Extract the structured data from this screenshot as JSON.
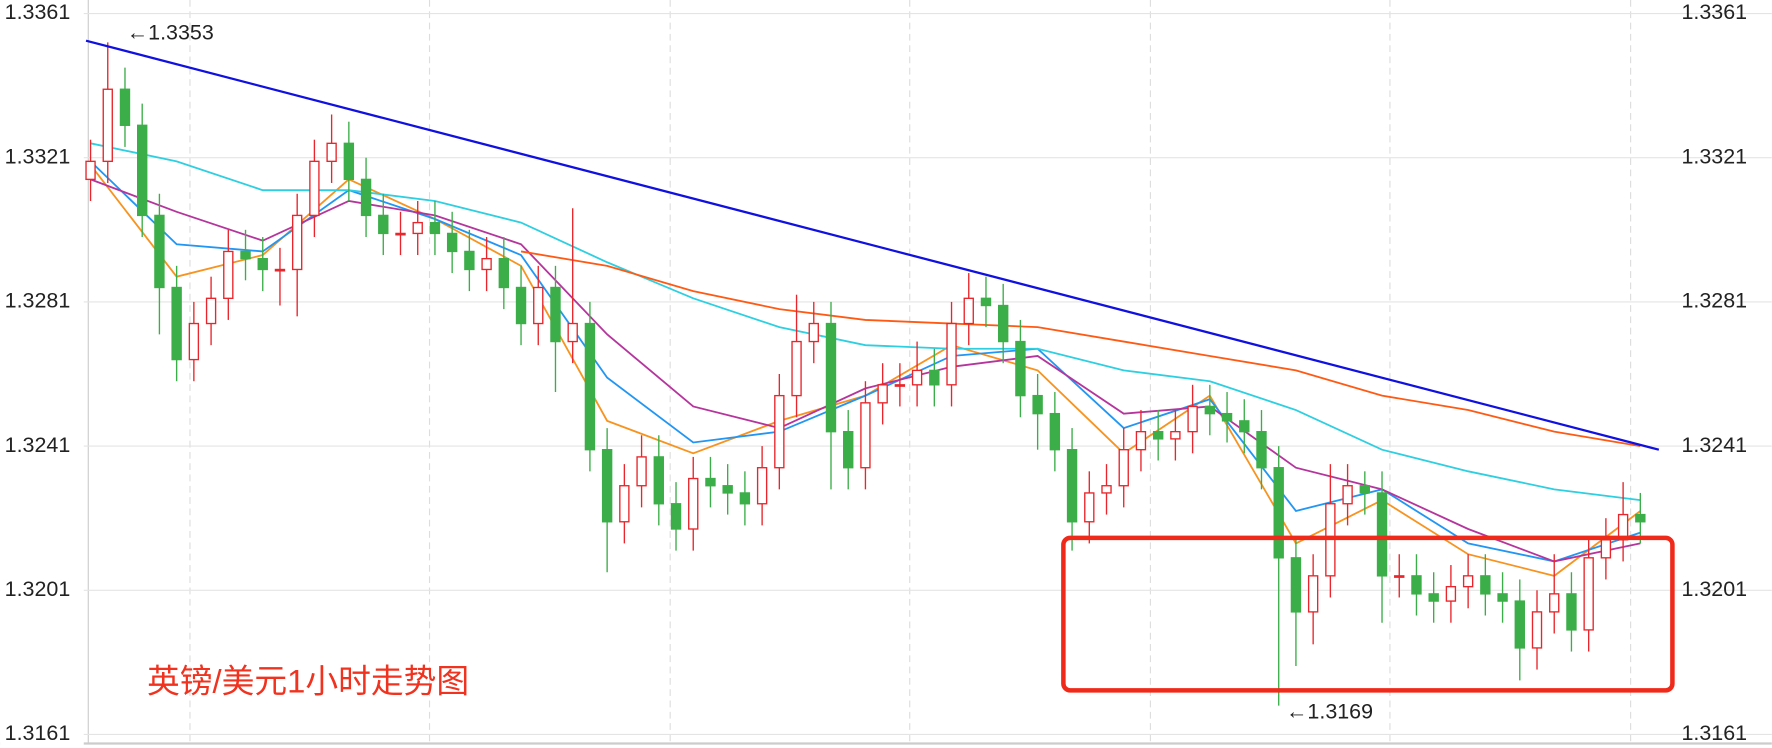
{
  "chart_data": {
    "type": "candlestick",
    "title": "英镑/美元1小时走势图",
    "annotations": [
      {
        "text": "←1.3353"
      },
      {
        "text": "←1.3169"
      }
    ],
    "open": [
      1.3315,
      1.332,
      1.334,
      1.333,
      1.3305,
      1.3285,
      1.3265,
      1.3275,
      1.3282,
      1.3295,
      1.3293,
      1.329,
      1.329,
      1.3305,
      1.332,
      1.3325,
      1.3315,
      1.3305,
      1.33,
      1.33,
      1.3303,
      1.33,
      1.3295,
      1.329,
      1.3293,
      1.3285,
      1.3275,
      1.3285,
      1.327,
      1.3275,
      1.324,
      1.322,
      1.323,
      1.3238,
      1.3225,
      1.3218,
      1.3232,
      1.323,
      1.3228,
      1.3225,
      1.3235,
      1.3255,
      1.327,
      1.3275,
      1.3245,
      1.3235,
      1.3253,
      1.3258,
      1.3258,
      1.3262,
      1.3258,
      1.3275,
      1.3282,
      1.328,
      1.327,
      1.3255,
      1.325,
      1.324,
      1.322,
      1.3228,
      1.323,
      1.324,
      1.3245,
      1.3243,
      1.3245,
      1.3252,
      1.325,
      1.3248,
      1.3245,
      1.3235,
      1.321,
      1.3195,
      1.3205,
      1.3225,
      1.323,
      1.3228,
      1.3205,
      1.3205,
      1.32,
      1.3198,
      1.3202,
      1.3205,
      1.32,
      1.3198,
      1.3185,
      1.3195,
      1.32,
      1.319,
      1.321,
      1.3215,
      1.3222
    ],
    "high": [
      1.3326,
      1.3353,
      1.3346,
      1.3336,
      1.3311,
      1.3291,
      1.3281,
      1.3288,
      1.3301,
      1.3301,
      1.3299,
      1.3296,
      1.3311,
      1.3326,
      1.3333,
      1.3331,
      1.3321,
      1.3311,
      1.3306,
      1.3309,
      1.3309,
      1.3306,
      1.3301,
      1.3299,
      1.3299,
      1.3291,
      1.3291,
      1.3291,
      1.3307,
      1.3281,
      1.3246,
      1.3236,
      1.3244,
      1.3244,
      1.3231,
      1.3238,
      1.3238,
      1.3236,
      1.3234,
      1.3241,
      1.3261,
      1.3283,
      1.3281,
      1.3281,
      1.3251,
      1.3259,
      1.3264,
      1.3264,
      1.327,
      1.3268,
      1.3281,
      1.3289,
      1.3288,
      1.3286,
      1.3276,
      1.3261,
      1.3256,
      1.3246,
      1.3234,
      1.3236,
      1.3246,
      1.3251,
      1.3251,
      1.3251,
      1.3258,
      1.3258,
      1.3256,
      1.3254,
      1.3251,
      1.3241,
      1.3216,
      1.3211,
      1.3236,
      1.3236,
      1.3234,
      1.3234,
      1.3211,
      1.3211,
      1.3206,
      1.3208,
      1.3211,
      1.3211,
      1.3206,
      1.3204,
      1.3201,
      1.3211,
      1.3206,
      1.3216,
      1.3221,
      1.3231,
      1.3228
    ],
    "low": [
      1.3309,
      1.3314,
      1.3324,
      1.3299,
      1.3272,
      1.3259,
      1.3259,
      1.3269,
      1.3276,
      1.3287,
      1.3284,
      1.328,
      1.3277,
      1.3299,
      1.3314,
      1.3309,
      1.3299,
      1.3294,
      1.3294,
      1.3294,
      1.3294,
      1.3289,
      1.3284,
      1.3284,
      1.3279,
      1.3269,
      1.3269,
      1.3256,
      1.3264,
      1.3234,
      1.3206,
      1.3214,
      1.3224,
      1.3219,
      1.3212,
      1.3212,
      1.3224,
      1.3222,
      1.3219,
      1.3219,
      1.3229,
      1.3249,
      1.3264,
      1.3229,
      1.3229,
      1.3229,
      1.3247,
      1.3252,
      1.3252,
      1.3252,
      1.3252,
      1.3269,
      1.3274,
      1.3264,
      1.3249,
      1.324,
      1.3234,
      1.3212,
      1.3214,
      1.3222,
      1.3224,
      1.3234,
      1.3237,
      1.3237,
      1.3239,
      1.3244,
      1.3242,
      1.3239,
      1.3229,
      1.3169,
      1.318,
      1.3186,
      1.3199,
      1.3219,
      1.3222,
      1.3192,
      1.3199,
      1.3194,
      1.3192,
      1.3192,
      1.3196,
      1.3194,
      1.3192,
      1.3176,
      1.3179,
      1.3189,
      1.3184,
      1.3184,
      1.3204,
      1.3209,
      1.3214
    ],
    "close": [
      1.332,
      1.334,
      1.333,
      1.3305,
      1.3285,
      1.3265,
      1.3275,
      1.3282,
      1.3295,
      1.3293,
      1.329,
      1.329,
      1.3305,
      1.332,
      1.3325,
      1.3315,
      1.3305,
      1.33,
      1.33,
      1.3303,
      1.33,
      1.3295,
      1.329,
      1.3293,
      1.3285,
      1.3275,
      1.3285,
      1.327,
      1.3275,
      1.324,
      1.322,
      1.323,
      1.3238,
      1.3225,
      1.3218,
      1.3232,
      1.323,
      1.3228,
      1.3225,
      1.3235,
      1.3255,
      1.327,
      1.3275,
      1.3245,
      1.3235,
      1.3253,
      1.3258,
      1.3258,
      1.3262,
      1.3258,
      1.3275,
      1.3282,
      1.328,
      1.327,
      1.3255,
      1.325,
      1.324,
      1.322,
      1.3228,
      1.323,
      1.324,
      1.3245,
      1.3243,
      1.3245,
      1.3252,
      1.325,
      1.3248,
      1.3245,
      1.3235,
      1.321,
      1.3195,
      1.3205,
      1.3225,
      1.323,
      1.3228,
      1.3205,
      1.3205,
      1.32,
      1.3198,
      1.3202,
      1.3205,
      1.32,
      1.3198,
      1.3185,
      1.3195,
      1.32,
      1.319,
      1.321,
      1.3215,
      1.3222,
      1.322
    ],
    "up_color": "#e8262b",
    "down_color": "#3cae49",
    "series": [
      {
        "color": "#f7931e",
        "x": [
          0,
          5,
          10,
          15,
          20,
          25,
          30,
          35,
          40,
          45,
          50,
          55,
          60,
          65,
          70,
          75,
          80,
          85,
          90
        ],
        "values": [
          1.3319,
          1.3288,
          1.3294,
          1.3315,
          1.3304,
          1.3291,
          1.3248,
          1.3239,
          1.3248,
          1.3255,
          1.3269,
          1.3262,
          1.3239,
          1.3255,
          1.3214,
          1.3226,
          1.3211,
          1.3205,
          1.3223
        ]
      },
      {
        "color": "#2196f3",
        "x": [
          0,
          5,
          10,
          15,
          20,
          25,
          30,
          35,
          40,
          45,
          50,
          55,
          60,
          65,
          70,
          75,
          80,
          85,
          90
        ],
        "values": [
          1.332,
          1.3297,
          1.3295,
          1.3312,
          1.3304,
          1.3294,
          1.326,
          1.3242,
          1.3245,
          1.3255,
          1.3266,
          1.3268,
          1.3246,
          1.3254,
          1.3223,
          1.3229,
          1.3214,
          1.3209,
          1.3217
        ]
      },
      {
        "color": "#b5359c",
        "x": [
          0,
          5,
          10,
          15,
          20,
          25,
          30,
          35,
          40,
          45,
          50,
          55,
          60,
          65,
          70,
          75,
          80,
          85,
          90
        ],
        "values": [
          1.3315,
          1.3306,
          1.3298,
          1.3309,
          1.3305,
          1.3297,
          1.3272,
          1.3252,
          1.3246,
          1.3257,
          1.3263,
          1.3266,
          1.325,
          1.3252,
          1.3235,
          1.3229,
          1.3218,
          1.3209,
          1.3214
        ]
      },
      {
        "color": "#2ecfe0",
        "x": [
          0,
          5,
          10,
          15,
          20,
          25,
          30,
          35,
          40,
          45,
          50,
          55,
          60,
          65,
          70,
          75,
          80,
          85,
          90
        ],
        "values": [
          1.3325,
          1.332,
          1.3312,
          1.3312,
          1.3309,
          1.3303,
          1.3292,
          1.3282,
          1.3274,
          1.3269,
          1.3268,
          1.3268,
          1.3262,
          1.3259,
          1.3251,
          1.324,
          1.3234,
          1.3229,
          1.3226
        ]
      },
      {
        "color": "#ff5a14",
        "x": [
          0,
          5,
          10,
          15,
          20,
          25,
          30,
          35,
          40,
          45,
          50,
          55,
          60,
          65,
          70,
          75,
          80,
          85,
          90
        ],
        "values": [
          null,
          null,
          null,
          null,
          null,
          1.3295,
          1.3291,
          1.3284,
          1.3279,
          1.3276,
          1.3275,
          1.3274,
          1.327,
          1.3266,
          1.3262,
          1.3255,
          1.3251,
          1.3245,
          1.3241
        ]
      }
    ],
    "ylim": [
      1.3161,
      1.3361
    ],
    "yticks": [
      1.3361,
      1.3321,
      1.3281,
      1.3241,
      1.3201,
      1.3161
    ],
    "grid": true
  }
}
